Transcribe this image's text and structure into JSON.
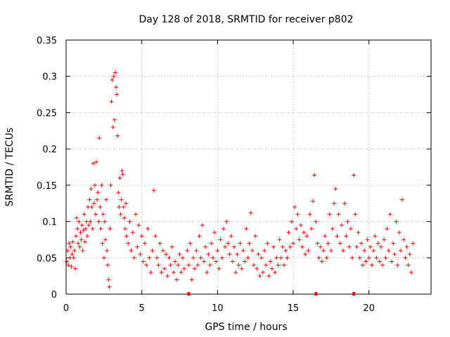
{
  "chart_data": {
    "type": "scatter",
    "title": "Day 128 of 2018, SRMTID for receiver p802",
    "xlabel": "GPS time / hours",
    "ylabel": "SRMTID / TECUs",
    "xlim": [
      0,
      24.1
    ],
    "ylim": [
      0,
      0.35
    ],
    "xticks": [
      0,
      5,
      10,
      15,
      20
    ],
    "xtick_labels": [
      "0",
      "5",
      "10",
      "15",
      "20"
    ],
    "yticks": [
      0,
      0.05,
      0.1,
      0.15,
      0.2,
      0.25,
      0.3,
      0.35
    ],
    "ytick_labels": [
      "0",
      "0.05",
      "0.1",
      "0.15",
      "0.2",
      "0.25",
      "0.3",
      "0.35"
    ],
    "grid": true,
    "marker": "+",
    "color": "#ff0000",
    "series": [
      {
        "name": "SRMTID",
        "points": [
          [
            0.05,
            0.045
          ],
          [
            0.1,
            0.06
          ],
          [
            0.15,
            0.04
          ],
          [
            0.2,
            0.07
          ],
          [
            0.25,
            0.05
          ],
          [
            0.3,
            0.065
          ],
          [
            0.35,
            0.038
          ],
          [
            0.4,
            0.055
          ],
          [
            0.45,
            0.072
          ],
          [
            0.5,
            0.05
          ],
          [
            0.55,
            0.06
          ],
          [
            0.6,
            0.035
          ],
          [
            0.65,
            0.08
          ],
          [
            0.7,
            0.105
          ],
          [
            0.75,
            0.09
          ],
          [
            0.8,
            0.07
          ],
          [
            0.85,
            0.1
          ],
          [
            0.9,
            0.065
          ],
          [
            0.95,
            0.085
          ],
          [
            1.0,
            0.075
          ],
          [
            1.05,
            0.095
          ],
          [
            1.1,
            0.06
          ],
          [
            1.15,
            0.088
          ],
          [
            1.2,
            0.11
          ],
          [
            1.25,
            0.072
          ],
          [
            1.3,
            0.09
          ],
          [
            1.35,
            0.1
          ],
          [
            1.4,
            0.08
          ],
          [
            1.45,
            0.12
          ],
          [
            1.5,
            0.095
          ],
          [
            1.55,
            0.13
          ],
          [
            1.6,
            0.1
          ],
          [
            1.65,
            0.145
          ],
          [
            1.7,
            0.12
          ],
          [
            1.75,
            0.09
          ],
          [
            1.8,
            0.18
          ],
          [
            1.85,
            0.125
          ],
          [
            1.9,
            0.15
          ],
          [
            1.95,
            0.11
          ],
          [
            2.0,
            0.182
          ],
          [
            2.05,
            0.13
          ],
          [
            2.1,
            0.14
          ],
          [
            2.15,
            0.1
          ],
          [
            2.2,
            0.215
          ],
          [
            2.25,
            0.12
          ],
          [
            2.3,
            0.09
          ],
          [
            2.35,
            0.15
          ],
          [
            2.4,
            0.07
          ],
          [
            2.45,
            0.11
          ],
          [
            2.5,
            0.05
          ],
          [
            2.55,
            0.1
          ],
          [
            2.6,
            0.075
          ],
          [
            2.65,
            0.13
          ],
          [
            2.7,
            0.06
          ],
          [
            2.75,
            0.04
          ],
          [
            2.8,
            0.02
          ],
          [
            2.85,
            0.01
          ],
          [
            2.9,
            0.09
          ],
          [
            2.95,
            0.15
          ],
          [
            3.0,
            0.265
          ],
          [
            3.05,
            0.295
          ],
          [
            3.1,
            0.23
          ],
          [
            3.15,
            0.3
          ],
          [
            3.2,
            0.24
          ],
          [
            3.25,
            0.305
          ],
          [
            3.3,
            0.285
          ],
          [
            3.35,
            0.275
          ],
          [
            3.4,
            0.218
          ],
          [
            3.45,
            0.14
          ],
          [
            3.5,
            0.12
          ],
          [
            3.55,
            0.16
          ],
          [
            3.6,
            0.11
          ],
          [
            3.65,
            0.13
          ],
          [
            3.7,
            0.17
          ],
          [
            3.75,
            0.165
          ],
          [
            3.8,
            0.12
          ],
          [
            3.85,
            0.105
          ],
          [
            3.9,
            0.09
          ],
          [
            3.95,
            0.125
          ],
          [
            4.0,
            0.08
          ],
          [
            4.1,
            0.07
          ],
          [
            4.2,
            0.1
          ],
          [
            4.3,
            0.06
          ],
          [
            4.4,
            0.085
          ],
          [
            4.5,
            0.05
          ],
          [
            4.6,
            0.11
          ],
          [
            4.7,
            0.065
          ],
          [
            4.8,
            0.095
          ],
          [
            4.9,
            0.055
          ],
          [
            5.0,
            0.08
          ],
          [
            5.1,
            0.045
          ],
          [
            5.2,
            0.07
          ],
          [
            5.3,
            0.04
          ],
          [
            5.4,
            0.09
          ],
          [
            5.5,
            0.05
          ],
          [
            5.6,
            0.03
          ],
          [
            5.7,
            0.06
          ],
          [
            5.8,
            0.143
          ],
          [
            5.9,
            0.08
          ],
          [
            6.0,
            0.05
          ],
          [
            6.1,
            0.04
          ],
          [
            6.2,
            0.07
          ],
          [
            6.3,
            0.03
          ],
          [
            6.4,
            0.06
          ],
          [
            6.5,
            0.035
          ],
          [
            6.6,
            0.055
          ],
          [
            6.7,
            0.025
          ],
          [
            6.8,
            0.05
          ],
          [
            6.9,
            0.04
          ],
          [
            7.0,
            0.065
          ],
          [
            7.1,
            0.03
          ],
          [
            7.2,
            0.045
          ],
          [
            7.3,
            0.02
          ],
          [
            7.4,
            0.04
          ],
          [
            7.5,
            0.055
          ],
          [
            7.6,
            0.03
          ],
          [
            7.7,
            0.05
          ],
          [
            7.8,
            0.035
          ],
          [
            8.0,
            0.06
          ],
          [
            8.1,
            0.04
          ],
          [
            8.2,
            0.07
          ],
          [
            8.3,
            0.02
          ],
          [
            8.4,
            0.05
          ],
          [
            8.5,
            0.035
          ],
          [
            8.6,
            0.06
          ],
          [
            8.7,
            0.04
          ],
          [
            8.8,
            0.08
          ],
          [
            8.9,
            0.05
          ],
          [
            9.0,
            0.095
          ],
          [
            9.1,
            0.045
          ],
          [
            9.2,
            0.065
          ],
          [
            9.3,
            0.03
          ],
          [
            9.4,
            0.055
          ],
          [
            9.5,
            0.04
          ],
          [
            9.6,
            0.07
          ],
          [
            9.7,
            0.05
          ],
          [
            9.8,
            0.085
          ],
          [
            9.9,
            0.045
          ],
          [
            10.0,
            0.06
          ],
          [
            10.1,
            0.035
          ],
          [
            10.2,
            0.075
          ],
          [
            10.3,
            0.05
          ],
          [
            10.4,
            0.09
          ],
          [
            10.5,
            0.065
          ],
          [
            10.6,
            0.1
          ],
          [
            10.7,
            0.07
          ],
          [
            10.8,
            0.055
          ],
          [
            10.9,
            0.08
          ],
          [
            11.0,
            0.045
          ],
          [
            11.1,
            0.065
          ],
          [
            11.2,
            0.03
          ],
          [
            11.3,
            0.055
          ],
          [
            11.4,
            0.04
          ],
          [
            11.5,
            0.07
          ],
          [
            11.6,
            0.035
          ],
          [
            11.7,
            0.06
          ],
          [
            11.8,
            0.045
          ],
          [
            11.9,
            0.09
          ],
          [
            12.0,
            0.05
          ],
          [
            12.1,
            0.07
          ],
          [
            12.2,
            0.112
          ],
          [
            12.3,
            0.06
          ],
          [
            12.4,
            0.04
          ],
          [
            12.5,
            0.08
          ],
          [
            12.6,
            0.035
          ],
          [
            12.7,
            0.055
          ],
          [
            12.8,
            0.025
          ],
          [
            12.9,
            0.05
          ],
          [
            13.0,
            0.03
          ],
          [
            13.1,
            0.06
          ],
          [
            13.2,
            0.04
          ],
          [
            13.3,
            0.07
          ],
          [
            13.4,
            0.025
          ],
          [
            13.5,
            0.045
          ],
          [
            13.6,
            0.035
          ],
          [
            13.7,
            0.065
          ],
          [
            13.8,
            0.03
          ],
          [
            13.9,
            0.05
          ],
          [
            14.0,
            0.04
          ],
          [
            14.1,
            0.075
          ],
          [
            14.2,
            0.05
          ],
          [
            14.3,
            0.065
          ],
          [
            14.4,
            0.04
          ],
          [
            14.5,
            0.06
          ],
          [
            14.6,
            0.05
          ],
          [
            14.7,
            0.085
          ],
          [
            14.8,
            0.065
          ],
          [
            14.9,
            0.1
          ],
          [
            15.0,
            0.07
          ],
          [
            15.1,
            0.12
          ],
          [
            15.2,
            0.09
          ],
          [
            15.3,
            0.11
          ],
          [
            15.4,
            0.075
          ],
          [
            15.5,
            0.095
          ],
          [
            15.6,
            0.065
          ],
          [
            15.7,
            0.085
          ],
          [
            15.8,
            0.055
          ],
          [
            15.9,
            0.08
          ],
          [
            16.0,
            0.06
          ],
          [
            16.1,
            0.11
          ],
          [
            16.2,
            0.09
          ],
          [
            16.3,
            0.128
          ],
          [
            16.4,
            0.164
          ],
          [
            16.5,
            0.1
          ],
          [
            16.6,
            0.07
          ],
          [
            16.7,
            0.05
          ],
          [
            16.8,
            0.065
          ],
          [
            16.9,
            0.045
          ],
          [
            17.0,
            0.06
          ],
          [
            17.1,
            0.08
          ],
          [
            17.2,
            0.05
          ],
          [
            17.3,
            0.07
          ],
          [
            17.4,
            0.11
          ],
          [
            17.5,
            0.06
          ],
          [
            17.6,
            0.09
          ],
          [
            17.7,
            0.125
          ],
          [
            17.8,
            0.145
          ],
          [
            17.9,
            0.08
          ],
          [
            18.0,
            0.11
          ],
          [
            18.1,
            0.07
          ],
          [
            18.2,
            0.095
          ],
          [
            18.3,
            0.06
          ],
          [
            18.4,
            0.125
          ],
          [
            18.5,
            0.08
          ],
          [
            18.6,
            0.1
          ],
          [
            18.7,
            0.065
          ],
          [
            18.8,
            0.09
          ],
          [
            18.9,
            0.05
          ],
          [
            19.0,
            0.164
          ],
          [
            19.1,
            0.11
          ],
          [
            19.2,
            0.065
          ],
          [
            19.3,
            0.085
          ],
          [
            19.4,
            0.05
          ],
          [
            19.5,
            0.07
          ],
          [
            19.6,
            0.04
          ],
          [
            19.7,
            0.06
          ],
          [
            19.8,
            0.045
          ],
          [
            19.9,
            0.075
          ],
          [
            20.0,
            0.05
          ],
          [
            20.1,
            0.065
          ],
          [
            20.2,
            0.04
          ],
          [
            20.3,
            0.06
          ],
          [
            20.4,
            0.08
          ],
          [
            20.5,
            0.05
          ],
          [
            20.6,
            0.07
          ],
          [
            20.7,
            0.045
          ],
          [
            20.8,
            0.065
          ],
          [
            20.9,
            0.04
          ],
          [
            21.0,
            0.075
          ],
          [
            21.1,
            0.05
          ],
          [
            21.2,
            0.09
          ],
          [
            21.3,
            0.06
          ],
          [
            21.4,
            0.11
          ],
          [
            21.5,
            0.045
          ],
          [
            21.6,
            0.07
          ],
          [
            21.7,
            0.055
          ],
          [
            21.8,
            0.1
          ],
          [
            21.9,
            0.04
          ],
          [
            22.0,
            0.085
          ],
          [
            22.1,
            0.06
          ],
          [
            22.2,
            0.13
          ],
          [
            22.3,
            0.075
          ],
          [
            22.4,
            0.05
          ],
          [
            22.5,
            0.065
          ],
          [
            22.6,
            0.04
          ],
          [
            22.7,
            0.055
          ],
          [
            22.8,
            0.03
          ],
          [
            22.9,
            0.07
          ]
        ]
      }
    ],
    "gap_markers_x": [
      8.1,
      16.5,
      19.0
    ]
  }
}
